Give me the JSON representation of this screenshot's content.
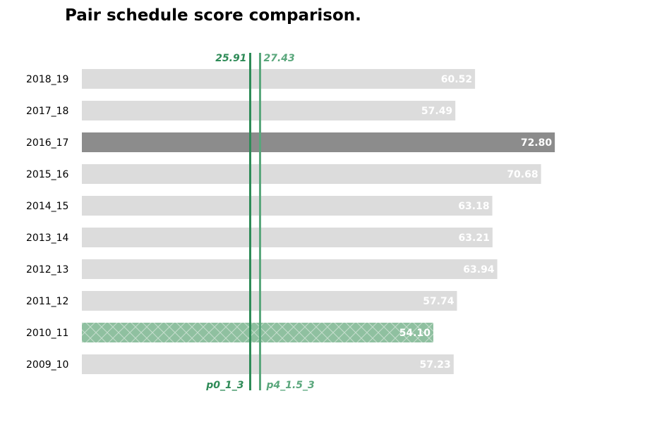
{
  "chart_data": {
    "type": "bar",
    "orientation": "horizontal",
    "title": "Pair schedule score comparison.",
    "xlabel": "",
    "ylabel": "",
    "xlim": [
      0,
      78
    ],
    "grid": false,
    "categories": [
      "2018_19",
      "2017_18",
      "2016_17",
      "2015_16",
      "2014_15",
      "2013_14",
      "2012_13",
      "2011_12",
      "2010_11",
      "2009_10"
    ],
    "values": [
      60.52,
      57.49,
      72.8,
      70.68,
      63.18,
      63.21,
      63.94,
      57.74,
      54.1,
      57.23
    ],
    "value_labels": [
      "60.52",
      "57.49",
      "72.80",
      "70.68",
      "63.18",
      "63.21",
      "63.94",
      "57.74",
      "54.10",
      "57.23"
    ],
    "highlight": {
      "max": "2016_17",
      "min": "2010_11"
    },
    "reference_lines": [
      {
        "name": "p0_1_3",
        "value": 25.91,
        "value_label": "25.91",
        "color": "#2e8b57"
      },
      {
        "name": "p4_1.5_3",
        "value": 27.43,
        "value_label": "27.43",
        "color": "#5aa77c"
      }
    ],
    "colors": {
      "default_bar": "#dcdcdc",
      "max_bar": "#8c8c8c",
      "min_bar": "#8fc0a0",
      "min_hatch": "#c5ddcd",
      "value_text": "#ffffff"
    }
  }
}
